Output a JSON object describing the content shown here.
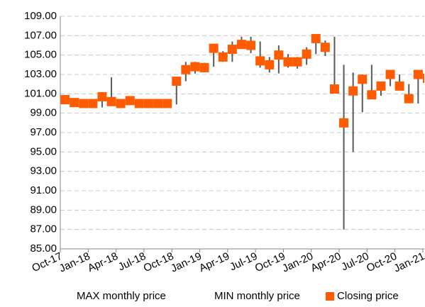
{
  "chart_data": {
    "type": "hilo_close",
    "categories": [
      "Oct-17",
      null,
      null,
      "Jan-18",
      null,
      null,
      "Apr-18",
      null,
      null,
      "Jul-18",
      null,
      null,
      "Oct-18",
      null,
      null,
      "Jan-19",
      null,
      null,
      "Apr-19",
      null,
      null,
      "Jul-19",
      null,
      null,
      "Oct-19",
      null,
      null,
      "Jan-20",
      null,
      null,
      "Apr-20",
      null,
      null,
      "Jul-20",
      null,
      null,
      "Oct-20",
      null,
      null,
      "Jan-21"
    ],
    "series": [
      {
        "name": "MAX monthly price",
        "role": "high",
        "values": [
          100.6,
          100.4,
          100.2,
          100.2,
          100.9,
          102.7,
          100.2,
          100.5,
          100.2,
          100.2,
          100.2,
          100.3,
          102.7,
          104.3,
          104.3,
          104.2,
          106.0,
          105.4,
          106.4,
          106.9,
          106.9,
          106.4,
          104.8,
          106.0,
          105.1,
          104.8,
          105.8,
          107.0,
          106.5,
          106.9,
          104.0,
          103.2,
          103.0,
          104.0,
          102.2,
          103.2,
          103.0,
          102.0,
          103.2,
          104.2
        ]
      },
      {
        "name": "MIN monthly price",
        "role": "low",
        "values": [
          100.1,
          99.9,
          99.9,
          99.9,
          99.6,
          100.0,
          99.9,
          100.0,
          99.9,
          99.9,
          99.9,
          99.9,
          99.9,
          102.3,
          103.1,
          103.5,
          103.8,
          104.3,
          104.3,
          105.7,
          105.2,
          103.7,
          103.2,
          103.1,
          103.7,
          103.6,
          104.0,
          105.1,
          104.9,
          101.3,
          87.0,
          95.0,
          99.1,
          100.8,
          100.8,
          101.8,
          101.4,
          100.4,
          100.0,
          102.3
        ]
      },
      {
        "name": "Closing price",
        "role": "close",
        "color": "#ff5b00",
        "values": [
          100.4,
          100.1,
          100.0,
          100.0,
          100.7,
          100.2,
          100.0,
          100.3,
          100.0,
          100.0,
          100.0,
          100.0,
          102.3,
          103.5,
          103.8,
          103.7,
          105.7,
          104.8,
          105.6,
          106.1,
          106.0,
          104.4,
          104.0,
          105.0,
          104.3,
          104.3,
          105.1,
          106.7,
          105.8,
          101.5,
          98.0,
          101.3,
          102.5,
          100.9,
          101.8,
          103.0,
          101.8,
          100.5,
          103.0,
          102.6
        ]
      }
    ],
    "hilo_color": "#595959",
    "ylim": [
      85,
      109
    ],
    "yticks": [
      {
        "value": 85,
        "label": "85.00"
      },
      {
        "value": 87,
        "label": "87.00"
      },
      {
        "value": 89,
        "label": "89.00"
      },
      {
        "value": 91,
        "label": "91.00"
      },
      {
        "value": 93,
        "label": "93.00"
      },
      {
        "value": 95,
        "label": "95.00"
      },
      {
        "value": 97,
        "label": "97.00"
      },
      {
        "value": 99,
        "label": "99.00"
      },
      {
        "value": 101,
        "label": "101.00"
      },
      {
        "value": 103,
        "label": "103.00"
      },
      {
        "value": 105,
        "label": "105.00"
      },
      {
        "value": 107,
        "label": "107.00"
      },
      {
        "value": 109,
        "label": "109.00"
      }
    ],
    "grid": true
  }
}
